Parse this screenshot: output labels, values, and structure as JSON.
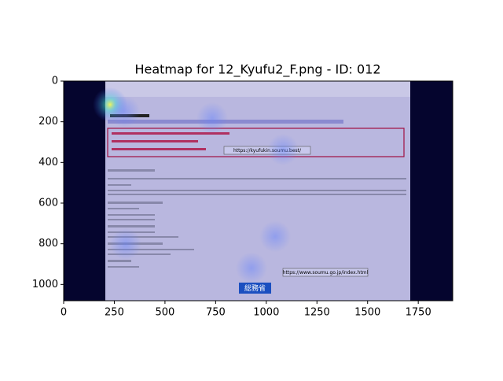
{
  "chart_data": {
    "type": "heatmap",
    "title": "Heatmap for 12_Kyufu2_F.png - ID: 012",
    "xlim": [
      0,
      1920
    ],
    "ylim": [
      1080,
      0
    ],
    "xticks": [
      0,
      250,
      500,
      750,
      1000,
      1250,
      1500,
      1750
    ],
    "yticks": [
      0,
      200,
      400,
      600,
      800,
      1000
    ],
    "hotspots": {
      "x": [
        229,
        300,
        733,
        1083,
        1044,
        927,
        306
      ],
      "y": [
        116,
        150,
        182,
        337,
        764,
        919,
        802
      ]
    },
    "image_text": {
      "url_1": "https://kyufukin.soumu.best/",
      "url_2": "https://www.soumu.go.jp/index.html",
      "logo": "総務省"
    }
  }
}
